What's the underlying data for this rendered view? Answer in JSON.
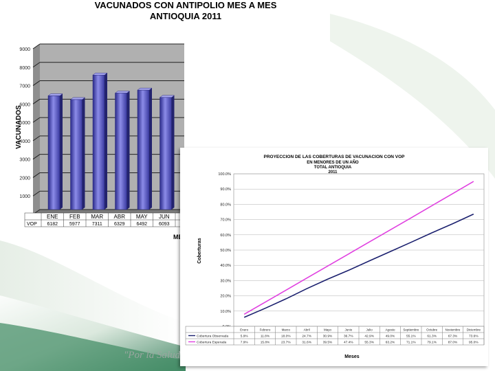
{
  "footer_quote": "\"Por la Salud",
  "chart_data": [
    {
      "type": "bar",
      "title": "VACUNADOS CON ANTIPOLIO MES A MES",
      "subtitle": "ANTIOQUIA 2011",
      "ylabel": "VACUNADOS",
      "xlabel": "ME",
      "ylim": [
        0,
        9000
      ],
      "yticks": [
        0,
        1000,
        2000,
        3000,
        4000,
        5000,
        6000,
        7000,
        8000,
        9000
      ],
      "categories": [
        "ENE",
        "FEB",
        "MAR",
        "ABR",
        "MAY",
        "JUN"
      ],
      "series": [
        {
          "name": "VOP",
          "values": [
            6182,
            5977,
            7311,
            6329,
            6492,
            6093
          ],
          "labels": [
            "6182",
            "5977",
            "7311",
            "6329",
            "6492",
            "6093"
          ],
          "color": "#4a4ab8"
        }
      ],
      "grid": true
    },
    {
      "type": "line",
      "title": "PROYECCION DE LAS COBERTURAS DE VACUNACION CON VOP",
      "subtitle_lines": [
        "EN MENORES DE UN AÑO",
        "TOTAL ANTIOQUIA",
        "2011"
      ],
      "xlabel": "Meses",
      "ylabel": "Coberturas",
      "ylim": [
        0,
        100
      ],
      "yticks": [
        "0.0%",
        "10.0%",
        "20.0%",
        "30.0%",
        "40.0%",
        "50.0%",
        "60.0%",
        "70.0%",
        "80.0%",
        "90.0%",
        "100.0%"
      ],
      "categories": [
        "Enero",
        "Febrero",
        "Marzo",
        "Abril",
        "Mayo",
        "Junio",
        "Julio",
        "Agosto",
        "Septiembre",
        "Octubre",
        "Noviembre",
        "Diciembre"
      ],
      "series": [
        {
          "name": "Cobertura Observada",
          "values": [
            5.9,
            11.8,
            18.0,
            24.7,
            30.9,
            36.7,
            42.9,
            49.0,
            55.1,
            61.3,
            67.3,
            73.6
          ],
          "labels": [
            "5.9%",
            "11.8%",
            "18.0%",
            "24.7%",
            "30.9%",
            "36.7%",
            "42.9%",
            "49.0%",
            "55.1%",
            "61.3%",
            "67.3%",
            "73.6%"
          ],
          "color": "#1a1f6e"
        },
        {
          "name": "Cobertura Esperada",
          "values": [
            7.9,
            15.8,
            23.7,
            31.6,
            39.5,
            47.4,
            55.3,
            63.2,
            71.1,
            79.1,
            87.0,
            95.0
          ],
          "labels": [
            "7.9%",
            "15.8%",
            "23.7%",
            "31.6%",
            "39.5%",
            "47.4%",
            "55.3%",
            "63.2%",
            "71.1%",
            "79.1%",
            "87.0%",
            "95.0%"
          ],
          "color": "#e040e0"
        }
      ],
      "grid": true,
      "legend": "bottom-table"
    }
  ]
}
